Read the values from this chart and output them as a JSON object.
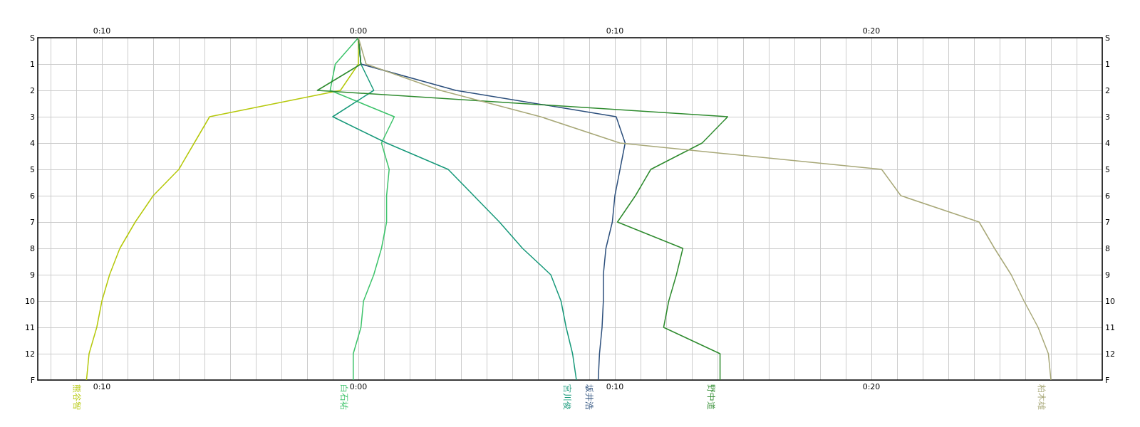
{
  "chart_data": {
    "type": "line",
    "orientation": "horizontal",
    "marker": "none",
    "grid": true,
    "legend": false,
    "categories": [
      "S",
      "1",
      "2",
      "3",
      "4",
      "5",
      "6",
      "7",
      "8",
      "9",
      "10",
      "11",
      "12",
      "F"
    ],
    "xlim": [
      -12.5,
      29
    ],
    "x2lim": [
      -12.5,
      29
    ],
    "xticks": [
      {
        "value": -12,
        "label": null
      },
      {
        "value": -11,
        "label": null
      },
      {
        "value": -10,
        "label": "0:10"
      },
      {
        "value": -9,
        "label": null
      },
      {
        "value": -8,
        "label": null
      },
      {
        "value": -7,
        "label": null
      },
      {
        "value": -6,
        "label": null
      },
      {
        "value": -5,
        "label": null
      },
      {
        "value": -4,
        "label": null
      },
      {
        "value": -3,
        "label": null
      },
      {
        "value": -2,
        "label": null
      },
      {
        "value": -1,
        "label": null
      },
      {
        "value": 0,
        "label": "0:00"
      },
      {
        "value": 1,
        "label": null
      },
      {
        "value": 2,
        "label": null
      },
      {
        "value": 3,
        "label": null
      },
      {
        "value": 4,
        "label": null
      },
      {
        "value": 5,
        "label": null
      },
      {
        "value": 6,
        "label": null
      },
      {
        "value": 7,
        "label": null
      },
      {
        "value": 8,
        "label": null
      },
      {
        "value": 9,
        "label": null
      },
      {
        "value": 10,
        "label": "0:10"
      },
      {
        "value": 11,
        "label": null
      },
      {
        "value": 12,
        "label": null
      },
      {
        "value": 13,
        "label": null
      },
      {
        "value": 14,
        "label": null
      },
      {
        "value": 15,
        "label": null
      },
      {
        "value": 16,
        "label": null
      },
      {
        "value": 17,
        "label": null
      },
      {
        "value": 18,
        "label": null
      },
      {
        "value": 19,
        "label": null
      },
      {
        "value": 20,
        "label": "0:20"
      },
      {
        "value": 21,
        "label": null
      },
      {
        "value": 22,
        "label": null
      },
      {
        "value": 23,
        "label": null
      },
      {
        "value": 24,
        "label": null
      },
      {
        "value": 25,
        "label": null
      },
      {
        "value": 26,
        "label": null
      },
      {
        "value": 27,
        "label": null
      },
      {
        "value": 28,
        "label": null
      },
      {
        "value": 29,
        "label": null
      }
    ],
    "x2ticks": [
      {
        "value": -10,
        "label": "0:10"
      },
      {
        "value": 0,
        "label": "0:00"
      },
      {
        "value": 10,
        "label": "0:10"
      },
      {
        "value": 20,
        "label": "0:20"
      }
    ],
    "series": [
      {
        "name": "熊谷智",
        "color": "#b5c80a",
        "values": [
          0,
          0,
          -0.7,
          -5.8,
          -6.4,
          -7,
          -8,
          -8.7,
          -9.3,
          -9.7,
          -10,
          -10.2,
          -10.5,
          -10.6
        ]
      },
      {
        "name": "白石祐",
        "color": "#3cc36a",
        "values": [
          0,
          -0.9,
          -1.1,
          1.4,
          0.9,
          1.2,
          1.1,
          1.1,
          0.9,
          0.6,
          0.2,
          0.1,
          -0.2,
          -0.2
        ]
      },
      {
        "name": "宮川俊",
        "color": "#17997a",
        "values": [
          0,
          0.1,
          0.6,
          -1,
          1.1,
          3.5,
          4.5,
          5.5,
          6.4,
          7.5,
          7.9,
          8.1,
          8.35,
          8.5
        ]
      },
      {
        "name": "坂井浩",
        "color": "#2c4f7c",
        "values": [
          0,
          0.1,
          3.8,
          10.05,
          10.4,
          10.2,
          10,
          9.9,
          9.65,
          9.55,
          9.55,
          9.5,
          9.4,
          9.35
        ]
      },
      {
        "name": "野中道",
        "color": "#2e8b2e",
        "values": [
          0,
          0.1,
          -1.6,
          14.4,
          13.4,
          11.4,
          10.8,
          10.1,
          12.65,
          12.4,
          12.1,
          11.9,
          14.1,
          14.1
        ]
      },
      {
        "name": "柏木雄",
        "color": "#a8a878",
        "values": [
          0,
          0.3,
          3.2,
          7.1,
          10.2,
          20.4,
          21.15,
          24.2,
          24.8,
          25.45,
          25.95,
          26.5,
          26.9,
          27
        ]
      }
    ]
  }
}
